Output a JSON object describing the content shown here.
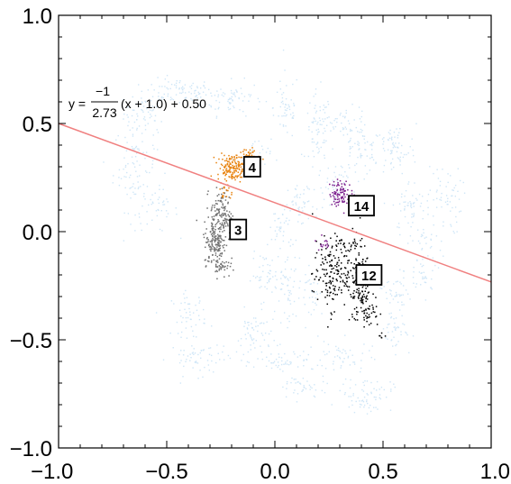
{
  "chart_data": {
    "type": "scatter",
    "title": "",
    "xlabel": "",
    "ylabel": "",
    "xlim": [
      -1.0,
      1.0
    ],
    "ylim": [
      -1.0,
      1.0
    ],
    "x_tick_labels": [
      "−1.0",
      "−0.5",
      "0.0",
      "0.5",
      "1.0"
    ],
    "x_tick_values": [
      -1.0,
      -0.5,
      0.0,
      0.5,
      1.0
    ],
    "y_tick_labels": [
      "−1.0",
      "−0.5",
      "0.0",
      "0.5",
      "1.0"
    ],
    "y_tick_values": [
      -1.0,
      -0.5,
      0.0,
      0.5,
      1.0
    ],
    "grid": false,
    "colors": {
      "background": "#cfe6f7",
      "line": "#f08080",
      "cluster_3": "#707070",
      "cluster_4": "#e8820e",
      "cluster_12": "#000000",
      "cluster_14": "#7a1d8c"
    },
    "fit_line": {
      "equation_prefix": "y =",
      "numerator": "−1",
      "denominator": "2.73",
      "equation_suffix": "(x + 1.0) + 0.50",
      "slope": -0.3663,
      "intercept_at_x_minus1": 0.5,
      "x_range": [
        -1.0,
        1.0
      ]
    },
    "background_clusters": [
      {
        "cx": -0.6,
        "cy": 0.55,
        "sx": 0.05,
        "sy": 0.05,
        "n": 60
      },
      {
        "cx": -0.45,
        "cy": 0.65,
        "sx": 0.08,
        "sy": 0.03,
        "n": 80
      },
      {
        "cx": -0.2,
        "cy": 0.62,
        "sx": 0.07,
        "sy": 0.04,
        "n": 70
      },
      {
        "cx": -0.65,
        "cy": 0.3,
        "sx": 0.05,
        "sy": 0.1,
        "n": 90
      },
      {
        "cx": -0.55,
        "cy": 0.1,
        "sx": 0.05,
        "sy": 0.05,
        "n": 40
      },
      {
        "cx": 0.05,
        "cy": 0.58,
        "sx": 0.03,
        "sy": 0.08,
        "n": 50
      },
      {
        "cx": 0.2,
        "cy": 0.45,
        "sx": 0.03,
        "sy": 0.1,
        "n": 70
      },
      {
        "cx": 0.32,
        "cy": 0.52,
        "sx": 0.06,
        "sy": 0.03,
        "n": 40
      },
      {
        "cx": 0.38,
        "cy": 0.38,
        "sx": 0.05,
        "sy": 0.06,
        "n": 70
      },
      {
        "cx": 0.55,
        "cy": 0.38,
        "sx": 0.05,
        "sy": 0.06,
        "n": 70
      },
      {
        "cx": 0.62,
        "cy": 0.12,
        "sx": 0.04,
        "sy": 0.06,
        "n": 50
      },
      {
        "cx": 0.68,
        "cy": -0.12,
        "sx": 0.04,
        "sy": 0.1,
        "n": 70
      },
      {
        "cx": 0.78,
        "cy": 0.15,
        "sx": 0.04,
        "sy": 0.08,
        "n": 60
      },
      {
        "cx": 0.55,
        "cy": -0.28,
        "sx": 0.03,
        "sy": 0.05,
        "n": 40
      },
      {
        "cx": 0.12,
        "cy": 0.12,
        "sx": 0.03,
        "sy": 0.05,
        "n": 40
      },
      {
        "cx": 0.03,
        "cy": 0.02,
        "sx": 0.03,
        "sy": 0.06,
        "n": 40
      },
      {
        "cx": 0.05,
        "cy": -0.25,
        "sx": 0.04,
        "sy": 0.08,
        "n": 60
      },
      {
        "cx": -0.05,
        "cy": -0.2,
        "sx": 0.03,
        "sy": 0.05,
        "n": 40
      },
      {
        "cx": 0.18,
        "cy": -0.3,
        "sx": 0.03,
        "sy": 0.05,
        "n": 30
      },
      {
        "cx": -0.4,
        "cy": -0.38,
        "sx": 0.04,
        "sy": 0.05,
        "n": 50
      },
      {
        "cx": -0.35,
        "cy": -0.58,
        "sx": 0.07,
        "sy": 0.04,
        "n": 60
      },
      {
        "cx": -0.1,
        "cy": -0.48,
        "sx": 0.04,
        "sy": 0.06,
        "n": 60
      },
      {
        "cx": 0.05,
        "cy": -0.6,
        "sx": 0.07,
        "sy": 0.03,
        "n": 50
      },
      {
        "cx": 0.12,
        "cy": -0.72,
        "sx": 0.06,
        "sy": 0.03,
        "n": 40
      },
      {
        "cx": 0.3,
        "cy": -0.58,
        "sx": 0.07,
        "sy": 0.04,
        "n": 50
      },
      {
        "cx": 0.42,
        "cy": -0.75,
        "sx": 0.06,
        "sy": 0.04,
        "n": 70
      },
      {
        "cx": 0.55,
        "cy": -0.45,
        "sx": 0.04,
        "sy": 0.05,
        "n": 40
      },
      {
        "cx": 0.25,
        "cy": 0.2,
        "sx": 0.04,
        "sy": 0.05,
        "n": 40
      },
      {
        "cx": -0.1,
        "cy": 0.35,
        "sx": 0.04,
        "sy": 0.04,
        "n": 30
      }
    ],
    "highlight_clusters": [
      {
        "label": "3",
        "color_key": "cluster_3",
        "points": [
          {
            "cx": -0.25,
            "cy": 0.08,
            "sx": 0.025,
            "sy": 0.06,
            "n": 140
          },
          {
            "cx": -0.28,
            "cy": -0.05,
            "sx": 0.025,
            "sy": 0.05,
            "n": 140
          },
          {
            "cx": -0.25,
            "cy": -0.15,
            "sx": 0.02,
            "sy": 0.03,
            "n": 40
          }
        ]
      },
      {
        "label": "4",
        "color_key": "cluster_4",
        "points": [
          {
            "cx": -0.2,
            "cy": 0.3,
            "sx": 0.035,
            "sy": 0.03,
            "n": 160
          },
          {
            "cx": -0.12,
            "cy": 0.35,
            "sx": 0.025,
            "sy": 0.02,
            "n": 40
          },
          {
            "cx": -0.23,
            "cy": 0.18,
            "sx": 0.015,
            "sy": 0.015,
            "n": 15
          }
        ]
      },
      {
        "label": "12",
        "color_key": "cluster_12",
        "points": [
          {
            "cx": 0.25,
            "cy": -0.2,
            "sx": 0.04,
            "sy": 0.08,
            "n": 140
          },
          {
            "cx": 0.38,
            "cy": -0.22,
            "sx": 0.03,
            "sy": 0.08,
            "n": 130
          },
          {
            "cx": 0.42,
            "cy": -0.36,
            "sx": 0.03,
            "sy": 0.04,
            "n": 50
          },
          {
            "cx": 0.33,
            "cy": -0.05,
            "sx": 0.04,
            "sy": 0.03,
            "n": 40
          },
          {
            "cx": 0.49,
            "cy": -0.48,
            "sx": 0.01,
            "sy": 0.01,
            "n": 6
          }
        ]
      },
      {
        "label": "14",
        "color_key": "cluster_14",
        "points": [
          {
            "cx": 0.3,
            "cy": 0.18,
            "sx": 0.025,
            "sy": 0.03,
            "n": 90
          },
          {
            "cx": 0.22,
            "cy": -0.05,
            "sx": 0.015,
            "sy": 0.015,
            "n": 15
          }
        ]
      }
    ],
    "annotations": [
      {
        "text": "4",
        "x": -0.105,
        "y": 0.3
      },
      {
        "text": "3",
        "x": -0.17,
        "y": 0.01
      },
      {
        "text": "14",
        "x": 0.4,
        "y": 0.12
      },
      {
        "text": "12",
        "x": 0.435,
        "y": -0.2
      }
    ]
  }
}
